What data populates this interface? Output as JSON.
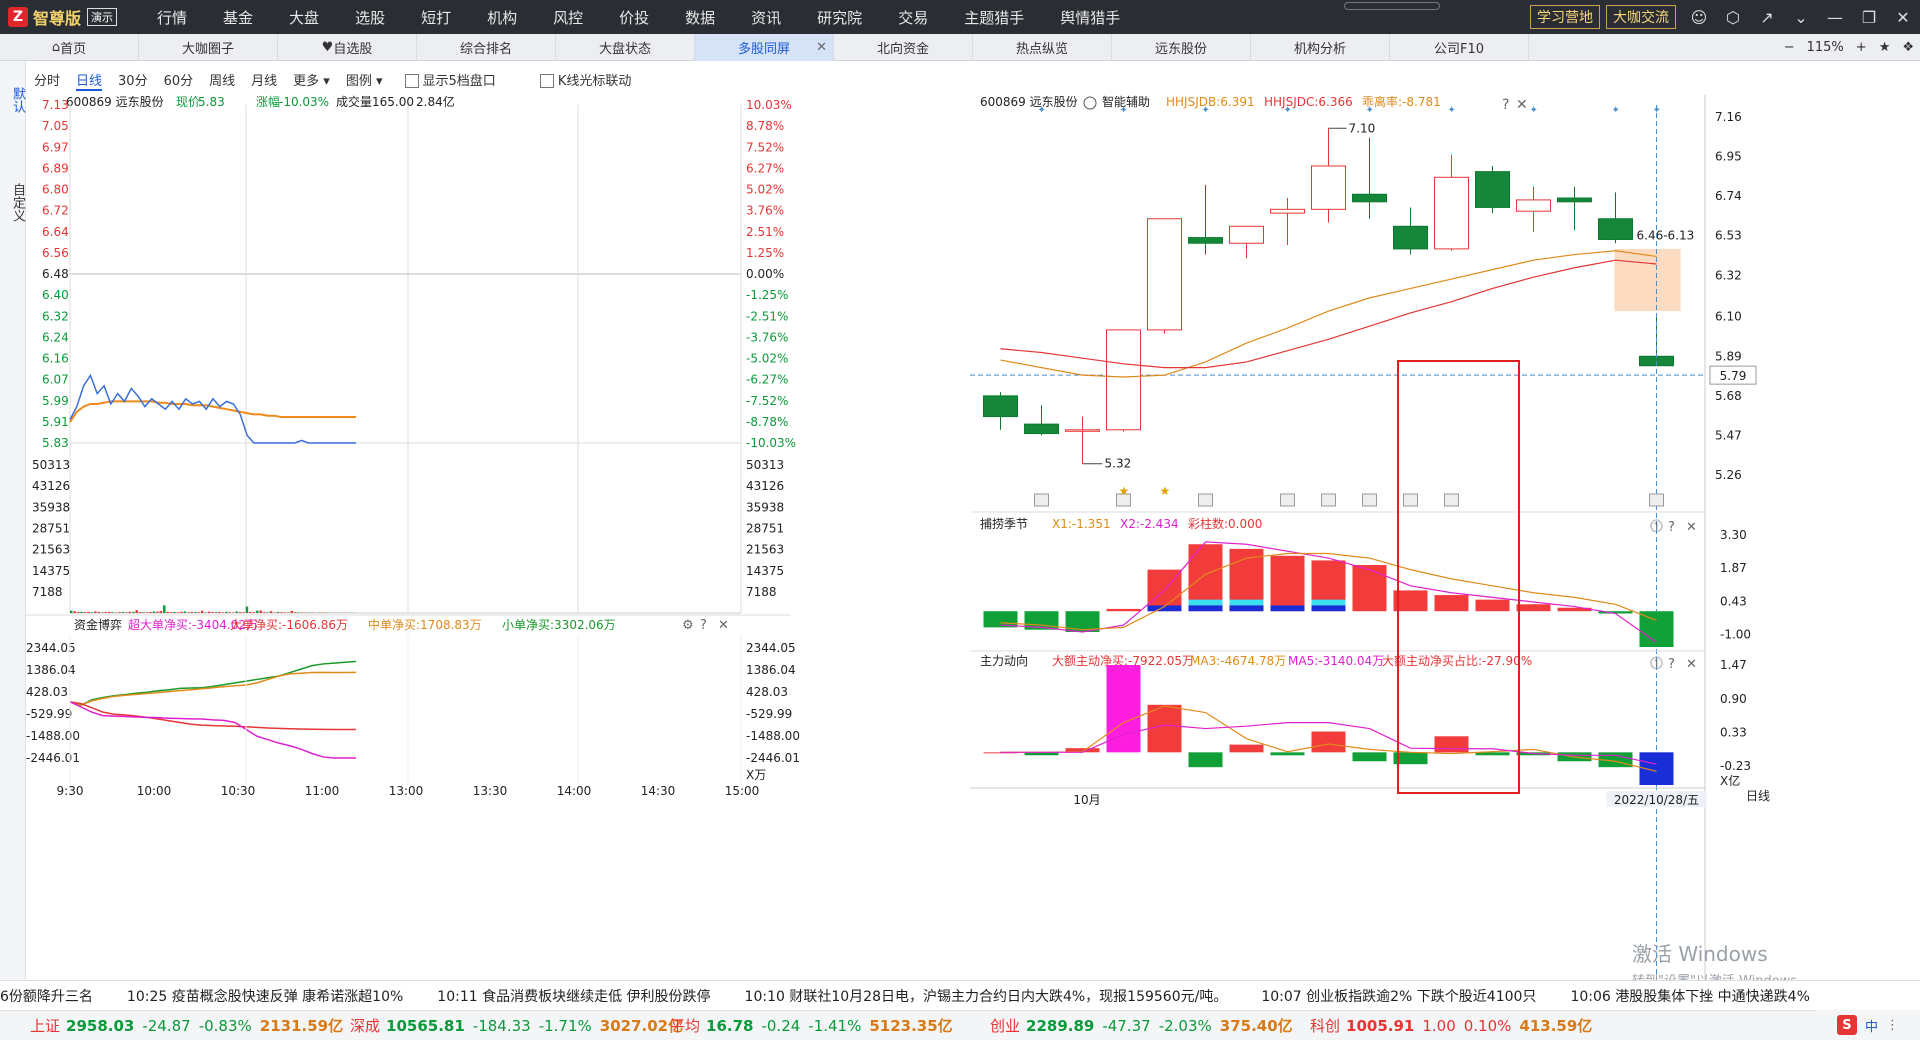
{
  "app": {
    "logo_mark": "Z",
    "logo_text": "智尊版",
    "demo": "演示"
  },
  "nav": [
    {
      "label": "行情",
      "dot": false
    },
    {
      "label": "基金",
      "dot": true
    },
    {
      "label": "大盘",
      "dot": false
    },
    {
      "label": "选股",
      "dot": true
    },
    {
      "label": "短打",
      "dot": false
    },
    {
      "label": "机构",
      "dot": false
    },
    {
      "label": "风控",
      "dot": false
    },
    {
      "label": "价投",
      "dot": false
    },
    {
      "label": "数据",
      "dot": false
    },
    {
      "label": "资讯",
      "dot": false
    },
    {
      "label": "研究院",
      "dot": false
    },
    {
      "label": "交易",
      "dot": true
    },
    {
      "label": "主题猎手",
      "dot": false
    },
    {
      "label": "舆情猎手",
      "dot": false
    }
  ],
  "top_buttons": {
    "learn": "学习营地",
    "community": "大咖交流"
  },
  "top_icons": [
    "user-icon",
    "settings-hex-icon",
    "collapse-icon",
    "chevron-down-icon",
    "minimize-icon",
    "restore-icon",
    "close-icon"
  ],
  "tabs": [
    {
      "label": "首页",
      "icon": "home-icon"
    },
    {
      "label": "大咖圈子"
    },
    {
      "label": "自选股",
      "icon": "heart-icon"
    },
    {
      "label": "综合排名"
    },
    {
      "label": "大盘状态"
    },
    {
      "label": "多股同屏",
      "active": true
    },
    {
      "label": "北向资金"
    },
    {
      "label": "热点纵览"
    },
    {
      "label": "远东股份"
    },
    {
      "label": "机构分析"
    },
    {
      "label": "公司F10"
    }
  ],
  "zoom": {
    "minus": "−",
    "value": "115%",
    "plus": "+"
  },
  "sidebar": {
    "default": "默认",
    "custom": "自定义"
  },
  "toolbar": {
    "periods": [
      "分时",
      "日线",
      "30分",
      "60分",
      "周线",
      "月线"
    ],
    "active": "日线",
    "more": "更多",
    "legend": "图例",
    "show5": "显示5档盘口",
    "kline_link": "K线光标联动"
  },
  "left_chart": {
    "header": {
      "code": "600869 远东股份",
      "price_lbl": "现价",
      "price": "5.83",
      "chg_lbl": "涨幅",
      "chg": "-10.03%",
      "vol_lbl": "成交量",
      "vol": "165.00",
      "amt": "2.84亿"
    },
    "price_ticks_left": [
      "7.13",
      "7.05",
      "6.97",
      "6.89",
      "6.80",
      "6.72",
      "6.64",
      "6.56",
      "6.48",
      "6.40",
      "6.32",
      "6.24",
      "6.16",
      "6.07",
      "5.99",
      "5.91",
      "5.83"
    ],
    "pct_ticks_right": [
      "10.03%",
      "8.78%",
      "7.52%",
      "6.27%",
      "5.02%",
      "3.76%",
      "2.51%",
      "1.25%",
      "0.00%",
      "-1.25%",
      "-2.51%",
      "-3.76%",
      "-5.02%",
      "-6.27%",
      "-7.52%",
      "-8.78%",
      "-10.03%"
    ],
    "vol_ticks": [
      "50313",
      "43126",
      "35938",
      "28751",
      "21563",
      "14375",
      "7188"
    ],
    "fund_title": "资金博弈",
    "fund_series": [
      {
        "label": "超大单净买:-3404.02万",
        "color": "#e020d0"
      },
      {
        "label": "大单净买:-1606.86万",
        "color": "#e63535"
      },
      {
        "label": "中单净买:1708.83万",
        "color": "#e08a1a"
      },
      {
        "label": "小单净买:3302.06万",
        "color": "#1a9a2a"
      }
    ],
    "fund_ticks": [
      "2344.05",
      "1386.04",
      "428.03",
      "-529.99",
      "-1488.00",
      "-2446.01"
    ],
    "fund_unit": "X万",
    "time_ticks": [
      "9:30",
      "10:00",
      "10:30",
      "11:00",
      "13:00",
      "13:30",
      "14:00",
      "14:30",
      "15:00"
    ]
  },
  "right_chart": {
    "header": {
      "code": "600869 远东股份",
      "assist": "智能辅助",
      "hhjsjdb": "HHJSJDB:6.391",
      "hhjsjdc": "HHJSJDC:6.366",
      "dev": "乖离率:-8.781"
    },
    "price_ticks": [
      "7.16",
      "6.95",
      "6.74",
      "6.53",
      "6.32",
      "6.10",
      "5.89",
      "5.68",
      "5.47",
      "5.26"
    ],
    "current_price": "5.79",
    "high_label": "7.10",
    "low_label": "5.32",
    "range_label": "6.46-6.13",
    "candles": [
      {
        "o": 5.68,
        "c": 5.57,
        "h": 5.7,
        "l": 5.5
      },
      {
        "o": 5.53,
        "c": 5.48,
        "h": 5.63,
        "l": 5.47
      },
      {
        "o": 5.5,
        "c": 5.5,
        "h": 5.57,
        "l": 5.32
      },
      {
        "o": 5.5,
        "c": 6.03,
        "h": 6.03,
        "l": 5.49
      },
      {
        "o": 6.03,
        "c": 6.62,
        "h": 6.62,
        "l": 6.01
      },
      {
        "o": 6.52,
        "c": 6.49,
        "h": 6.8,
        "l": 6.43
      },
      {
        "o": 6.49,
        "c": 6.58,
        "h": 6.58,
        "l": 6.41
      },
      {
        "o": 6.65,
        "c": 6.67,
        "h": 6.73,
        "l": 6.48
      },
      {
        "o": 6.67,
        "c": 6.9,
        "h": 7.1,
        "l": 6.6
      },
      {
        "o": 6.75,
        "c": 6.71,
        "h": 7.05,
        "l": 6.62
      },
      {
        "o": 6.58,
        "c": 6.46,
        "h": 6.68,
        "l": 6.43
      },
      {
        "o": 6.46,
        "c": 6.84,
        "h": 6.96,
        "l": 6.45
      },
      {
        "o": 6.87,
        "c": 6.68,
        "h": 6.9,
        "l": 6.65
      },
      {
        "o": 6.66,
        "c": 6.72,
        "h": 6.79,
        "l": 6.55
      },
      {
        "o": 6.73,
        "c": 6.71,
        "h": 6.79,
        "l": 6.56
      },
      {
        "o": 6.62,
        "c": 6.51,
        "h": 6.76,
        "l": 6.49
      },
      {
        "o": 5.89,
        "c": 5.84,
        "h": 6.1,
        "l": 5.84
      }
    ],
    "ma_orange": [
      5.87,
      5.83,
      5.79,
      5.78,
      5.79,
      5.86,
      5.96,
      6.04,
      6.13,
      6.2,
      6.25,
      6.3,
      6.35,
      6.4,
      6.43,
      6.45,
      6.42
    ],
    "ma_red": [
      5.93,
      5.91,
      5.88,
      5.85,
      5.83,
      5.83,
      5.86,
      5.92,
      5.98,
      6.05,
      6.12,
      6.18,
      6.25,
      6.31,
      6.36,
      6.4,
      6.38
    ],
    "event_icons": [
      "研",
      "研",
      "研",
      "控",
      "控",
      "研",
      "押",
      "研",
      "研"
    ],
    "sub1": {
      "title": "捕捞季节",
      "x1": "X1:-1.351",
      "x2": "X2:-2.434",
      "caizhu": "彩柱数:0.000",
      "ticks": [
        "3.30",
        "1.87",
        "0.43",
        "-1.00"
      ],
      "bars": [
        -0.7,
        -0.8,
        -0.9,
        0.1,
        1.8,
        2.9,
        2.7,
        2.4,
        2.2,
        2.0,
        0.9,
        0.7,
        0.5,
        0.3,
        0.15,
        -0.1,
        -1.55
      ],
      "x1_line": [
        -0.6,
        -0.7,
        -0.9,
        -0.6,
        0.9,
        3.0,
        2.9,
        2.6,
        2.3,
        1.8,
        1.1,
        0.8,
        0.6,
        0.4,
        0.2,
        -0.1,
        -1.35
      ],
      "x2_line": [
        -0.5,
        -0.6,
        -0.8,
        -0.7,
        0.2,
        1.6,
        2.3,
        2.5,
        2.5,
        2.3,
        1.8,
        1.4,
        1.1,
        0.8,
        0.6,
        0.3,
        -0.4
      ]
    },
    "sub2": {
      "title": "主力动向",
      "dz": "大额主动净买:-7922.05万",
      "ma3": "MA3:-4674.78万",
      "ma5": "MA5:-3140.04万",
      "ratio": "大额主动净买占比:-27.90%",
      "ticks": [
        "1.47",
        "0.90",
        "0.33",
        "-0.23"
      ],
      "unit": "X亿",
      "bars": [
        0.0,
        -0.05,
        0.07,
        1.47,
        0.8,
        -0.25,
        0.13,
        -0.05,
        0.35,
        -0.15,
        -0.2,
        0.27,
        -0.05,
        -0.05,
        -0.15,
        -0.25,
        -0.55
      ],
      "ma3_line": [
        0.0,
        0.0,
        0.01,
        0.5,
        0.78,
        0.67,
        0.23,
        0.01,
        0.14,
        0.05,
        0.0,
        -0.02,
        0.01,
        0.05,
        -0.08,
        -0.15,
        -0.32
      ],
      "ma5_line": [
        0.0,
        0.0,
        0.0,
        0.3,
        0.46,
        0.4,
        0.44,
        0.5,
        0.5,
        0.4,
        0.07,
        0.06,
        0.06,
        -0.02,
        -0.05,
        -0.05,
        -0.2
      ]
    },
    "month_label": "10月",
    "date_label": "2022/10/28/五",
    "period_tag": "日线"
  },
  "windows_watermark": {
    "line1": "激活 Windows",
    "line2": "转到\"设置\"以激活 Windows。"
  },
  "ticker": [
    "6份额降升三名",
    "10:25 疫苗概念股快速反弹 康希诺涨超10%",
    "10:11 食品消费板块继续走低 伊利股份跌停",
    "10:10 财联社10月28日电，沪锡主力合约日内大跌4%，现报159560元/吨。",
    "10:07 创业板指跌逾2% 下跌个股近4100只",
    "10:06 港股股集体下挫 中通快递跌4%"
  ],
  "indices": [
    {
      "name": "上证",
      "value": "2958.03",
      "chg": "-24.87",
      "pct": "-0.83%",
      "amt": "2131.59亿",
      "dir": "g"
    },
    {
      "name": "深成",
      "value": "10565.81",
      "chg": "-184.33",
      "pct": "-1.71%",
      "amt": "3027.02亿",
      "dir": "g"
    },
    {
      "name": "平均",
      "value": "16.78",
      "chg": "-0.24",
      "pct": "-1.41%",
      "amt": "5123.35亿",
      "dir": "g"
    },
    {
      "name": "创业",
      "value": "2289.89",
      "chg": "-47.37",
      "pct": "-2.03%",
      "amt": "375.40亿",
      "dir": "g"
    },
    {
      "name": "科创",
      "value": "1005.91",
      "chg": "1.00",
      "pct": "0.10%",
      "amt": "413.59亿",
      "dir": "r"
    }
  ],
  "tray": {
    "ime": "中"
  }
}
